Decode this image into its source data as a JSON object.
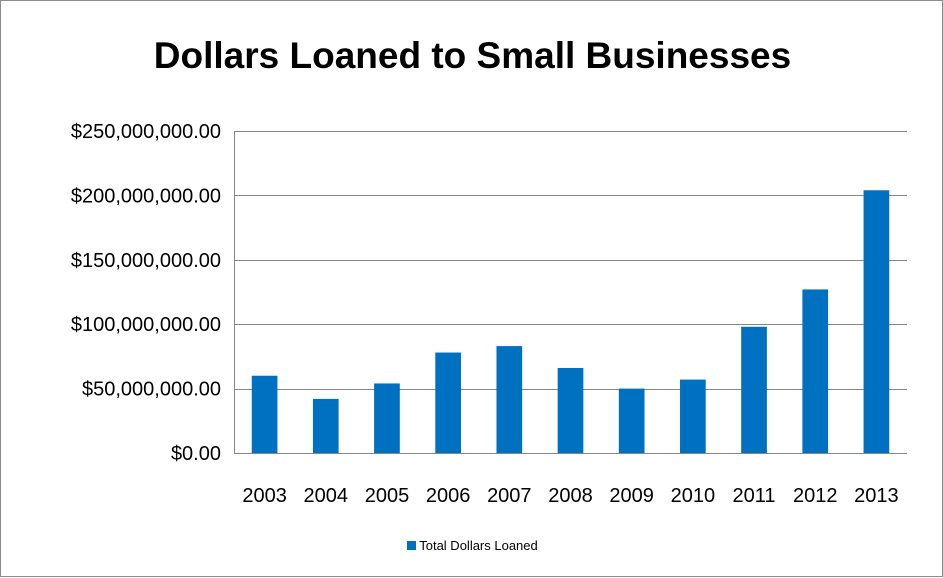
{
  "chart_data": {
    "type": "bar",
    "title": "Dollars Loaned to Small Businesses",
    "xlabel": "",
    "ylabel": "",
    "categories": [
      "2003",
      "2004",
      "2005",
      "2006",
      "2007",
      "2008",
      "2009",
      "2010",
      "2011",
      "2012",
      "2013"
    ],
    "series": [
      {
        "name": "Total Dollars Loaned",
        "color": "#0070C0",
        "values": [
          60000000,
          42000000,
          54000000,
          78000000,
          83000000,
          66000000,
          50000000,
          57000000,
          98000000,
          127000000,
          204000000
        ]
      }
    ],
    "ylim": [
      0,
      250000000
    ],
    "yticks": [
      0,
      50000000,
      100000000,
      150000000,
      200000000,
      250000000
    ],
    "ytick_labels": [
      "$0.00",
      "$50,000,000.00",
      "$100,000,000.00",
      "$150,000,000.00",
      "$200,000,000.00",
      "$250,000,000.00"
    ],
    "grid": true,
    "legend_position": "bottom",
    "colors": {
      "bar": "#0070C0",
      "gridline": "#868686",
      "axis": "#868686"
    }
  }
}
